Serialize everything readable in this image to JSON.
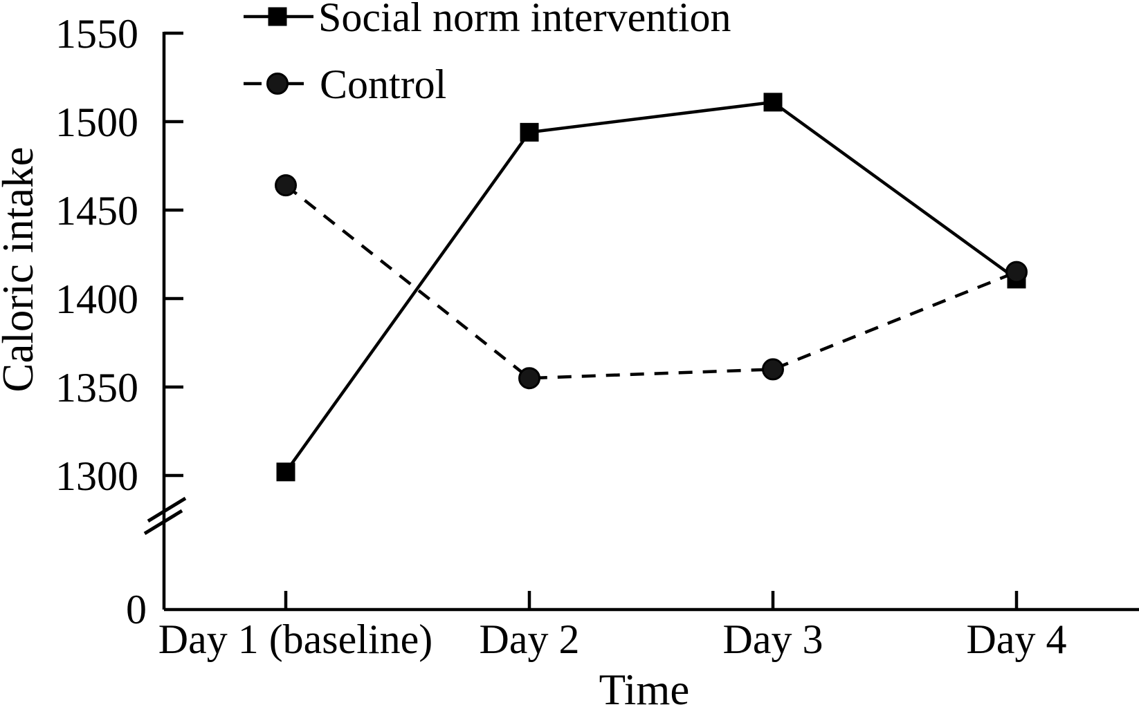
{
  "figure": {
    "background": "#ffffff",
    "foreground": "#000000"
  },
  "chart_data": {
    "type": "line",
    "title": "",
    "xlabel": "Time",
    "ylabel": "Caloric intake",
    "categories": [
      "Day 1 (baseline)",
      "Day 2",
      "Day 3",
      "Day 4"
    ],
    "series": [
      {
        "name": "Social norm intervention",
        "marker": "square",
        "line_style": "solid",
        "color": "#000000",
        "values": [
          1302,
          1494,
          1511,
          1411
        ]
      },
      {
        "name": "Control",
        "marker": "circle",
        "line_style": "dashed",
        "color": "#000000",
        "values": [
          1464,
          1355,
          1360,
          1415
        ]
      }
    ],
    "y_ticks": [
      1550,
      1500,
      1450,
      1400,
      1350,
      1300
    ],
    "origin_label": "0",
    "y_axis_break": true,
    "ylim_display": [
      1300,
      1550
    ],
    "axis_ranges": {
      "y_shown_segment": [
        1300,
        1550
      ],
      "y_true_origin": 0
    },
    "legend_position": "top-left",
    "grid": false,
    "colors": {
      "foreground": "#000000",
      "background": "#ffffff"
    }
  }
}
